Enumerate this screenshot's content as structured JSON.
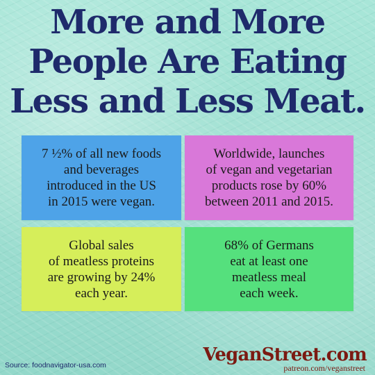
{
  "headline": {
    "lines": [
      "More and More",
      "People Are Eating",
      "Less and Less Meat."
    ]
  },
  "cards": [
    {
      "color": "#4ea3e8",
      "lines": [
        "7 ½% of all new foods",
        "and beverages",
        "introduced in the US",
        "in 2015 were vegan."
      ]
    },
    {
      "color": "#d978d9",
      "lines": [
        "Worldwide, launches",
        "of vegan and vegetarian",
        "products rose by 60%",
        "between 2011 and 2015."
      ]
    },
    {
      "color": "#d6ee5a",
      "lines": [
        "Global sales",
        "of meatless proteins",
        "are growing by 24%",
        "each year."
      ]
    },
    {
      "color": "#55e07d",
      "lines": [
        "68% of Germans",
        "eat at least one",
        "meatless meal",
        "each week."
      ]
    }
  ],
  "footer": {
    "source": "Source: foodnavigator-usa.com",
    "brand": "VeganStreet.com",
    "patreon": "patreon.com/veganstreet"
  }
}
